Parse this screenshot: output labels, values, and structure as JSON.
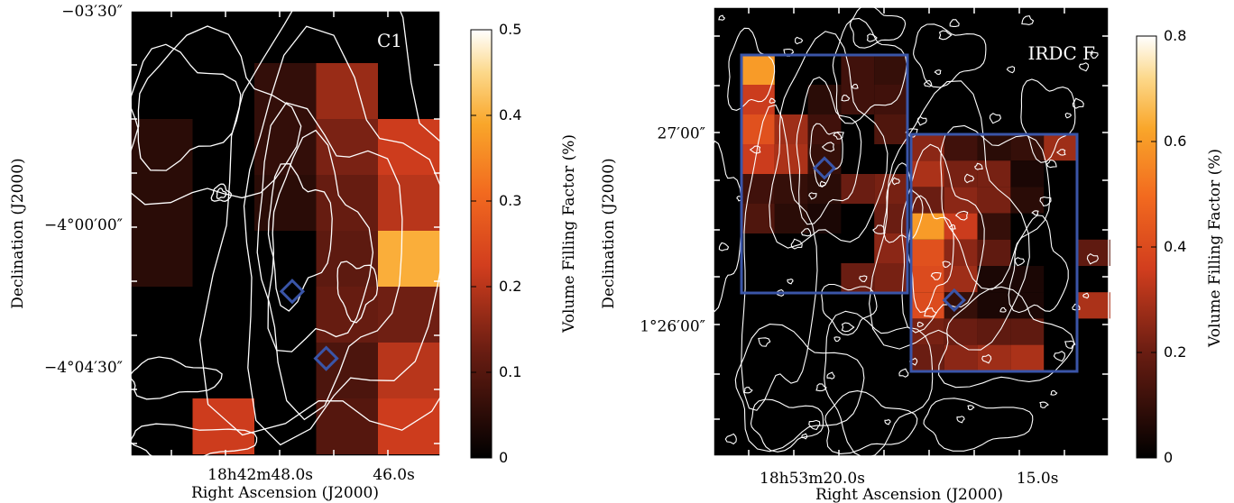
{
  "chart_data": [
    {
      "type": "heatmap",
      "title": "",
      "panel_label": "C1",
      "xlabel": "Right Ascension (J2000)",
      "ylabel": "Declination (J2000)",
      "x_ticks": [
        {
          "pos": 0.2,
          "label": "18h42m48.0s"
        },
        {
          "pos": 0.85,
          "label": "46.0s"
        }
      ],
      "y_ticks": [
        {
          "pos": 1.0,
          "label": "−03′30″"
        },
        {
          "pos": 0.52,
          "label": "−4°00′00″"
        },
        {
          "pos": 0.2,
          "label": "−4°04′30″"
        }
      ],
      "colorbar": {
        "label": "Volume Filling Factor (%)",
        "range": [
          0,
          0.5
        ],
        "ticks": [
          "0",
          "0.1",
          "0.2",
          "0.3",
          "0.4",
          "0.5"
        ]
      },
      "grid": {
        "cols": 5,
        "rows": 8
      },
      "values": [
        [
          null,
          null,
          0.06,
          0.17,
          null
        ],
        [
          0.05,
          null,
          0.06,
          0.14,
          0.22
        ],
        [
          0.05,
          null,
          0.05,
          0.12,
          0.2
        ],
        [
          0.05,
          null,
          null,
          0.11,
          0.4
        ],
        [
          null,
          null,
          null,
          0.12,
          0.13
        ],
        [
          null,
          null,
          null,
          0.09,
          0.2
        ],
        [
          null,
          0.22,
          null,
          0.1,
          0.22
        ],
        [
          null,
          null,
          null,
          null,
          null
        ]
      ],
      "markers": [
        {
          "col": 3.05,
          "row": 3.6
        },
        {
          "col": 3.6,
          "row": 4.8
        }
      ],
      "colors": {
        "marker": "#3a55a8",
        "contour": "#ffffff"
      }
    },
    {
      "type": "heatmap",
      "title": "",
      "panel_label": "IRDC F",
      "xlabel": "Right Ascension (J2000)",
      "ylabel": "Declination (J2000)",
      "x_ticks": [
        {
          "pos": 0.25,
          "label": "18h53m20.0s"
        },
        {
          "pos": 0.82,
          "label": "15.0s"
        }
      ],
      "y_ticks": [
        {
          "pos": 0.72,
          "label": "27′00″"
        },
        {
          "pos": 0.29,
          "label": "1°26′00″"
        }
      ],
      "colorbar": {
        "label": "Volume Filling Factor (%)",
        "range": [
          0,
          0.8
        ],
        "ticks": [
          "0",
          "0.2",
          "0.4",
          "0.6",
          "0.8"
        ]
      },
      "grid_a": {
        "values": [
          [
            0.6,
            null,
            null,
            0.12,
            0.1
          ],
          [
            0.35,
            null,
            0.08,
            0.12,
            0.12
          ],
          [
            0.42,
            0.28,
            0.12,
            null,
            0.15
          ],
          [
            0.35,
            0.3,
            0.1,
            null,
            null
          ],
          [
            0.12,
            0.1,
            0.08,
            0.2,
            0.22
          ],
          [
            0.15,
            0.08,
            0.05,
            null,
            0.2
          ],
          [
            null,
            null,
            null,
            null,
            0.25
          ],
          [
            null,
            null,
            null,
            0.2,
            0.22
          ]
        ]
      },
      "grid_b": {
        "values": [
          [
            0.25,
            0.12,
            0.08,
            0.1,
            0.28,
            null
          ],
          [
            0.3,
            0.22,
            0.22,
            0.05,
            null,
            null
          ],
          [
            0.2,
            0.25,
            0.22,
            0.08,
            null,
            null
          ],
          [
            0.6,
            0.35,
            0.1,
            null,
            null,
            null
          ],
          [
            0.42,
            0.25,
            0.18,
            null,
            null,
            0.18
          ],
          [
            0.4,
            0.28,
            0.05,
            0.05,
            null,
            null
          ],
          [
            0.4,
            0.1,
            0.05,
            0.05,
            null,
            0.3
          ],
          [
            0.22,
            0.2,
            0.18,
            0.18,
            null,
            null
          ],
          [
            0.2,
            0.25,
            0.28,
            0.3,
            null,
            null
          ]
        ]
      },
      "markers": [
        {
          "panel": "a",
          "col": 2.5,
          "row": 3.8
        },
        {
          "panel": "b",
          "col": 1.3,
          "row": 6.3
        }
      ],
      "colors": {
        "marker": "#3a55a8",
        "box": "#3a55a8",
        "contour": "#ffffff"
      }
    }
  ]
}
